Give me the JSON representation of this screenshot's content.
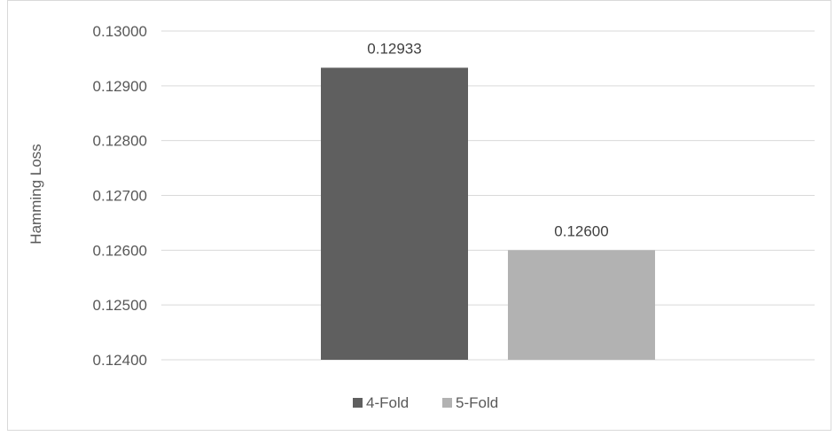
{
  "chart_data": {
    "type": "bar",
    "title": "",
    "xlabel": "",
    "ylabel": "Hamming Loss",
    "ylim": [
      0.124,
      0.13
    ],
    "y_ticks": [
      "0.12400",
      "0.12500",
      "0.12600",
      "0.12700",
      "0.12800",
      "0.12900",
      "0.13000"
    ],
    "grid": true,
    "legend_position": "bottom",
    "series": [
      {
        "name": "4-Fold",
        "values": [
          0.12933
        ],
        "label": "0.12933",
        "color": "#5f5f5f"
      },
      {
        "name": "5-Fold",
        "values": [
          0.126
        ],
        "label": "0.12600",
        "color": "#b2b2b2"
      }
    ]
  }
}
